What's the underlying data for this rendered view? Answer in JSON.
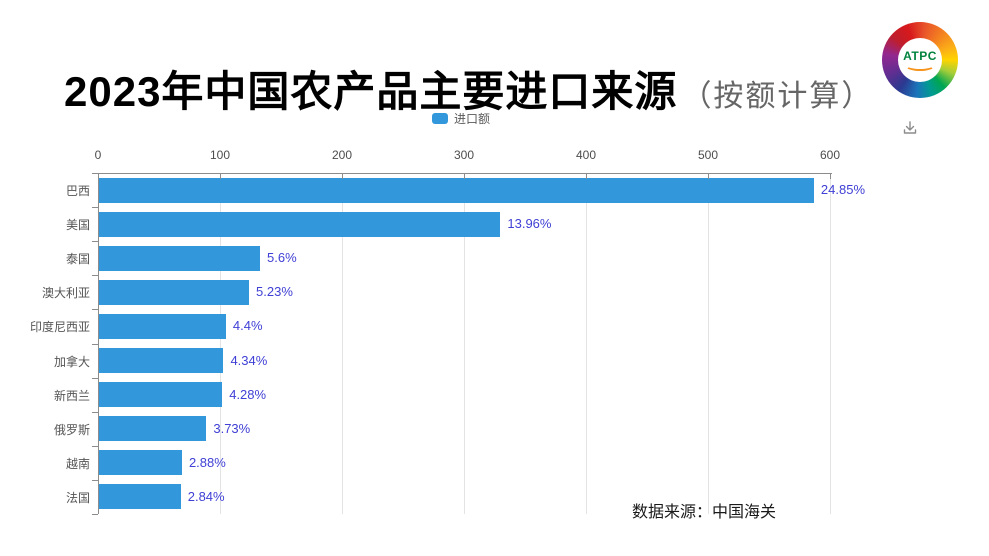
{
  "title": {
    "main": "2023年中国农产品主要进口来源",
    "sub": "（按额计算）"
  },
  "legend": {
    "label": "进口额",
    "swatch_color": "#3398db"
  },
  "logo": {
    "text": "ATPC"
  },
  "source_note": "数据来源：中国海关",
  "colors": {
    "bar": "#3398db",
    "value_label": "#4040d6",
    "axis": "#8c8c8c",
    "grid": "#e3e3e3"
  },
  "chart_data": {
    "type": "bar",
    "orientation": "horizontal",
    "title": "2023年中国农产品主要进口来源（按额计算）",
    "series_name": "进口额",
    "categories": [
      "巴西",
      "美国",
      "泰国",
      "澳大利亚",
      "印度尼西亚",
      "加拿大",
      "新西兰",
      "俄罗斯",
      "越南",
      "法国"
    ],
    "values": [
      586,
      329,
      132,
      123,
      104,
      102,
      101,
      88,
      68,
      67
    ],
    "data_labels": [
      "24.85%",
      "13.96%",
      "5.6%",
      "5.23%",
      "4.4%",
      "4.34%",
      "4.28%",
      "3.73%",
      "2.88%",
      "2.84%"
    ],
    "xlim": [
      0,
      600
    ],
    "x_ticks": [
      "0",
      "100",
      "200",
      "300",
      "400",
      "500",
      "600"
    ],
    "grid": true,
    "legend_position": "top",
    "bar_color": "#3398db",
    "label_color": "#4040d6",
    "source": "数据来源：中国海关"
  }
}
